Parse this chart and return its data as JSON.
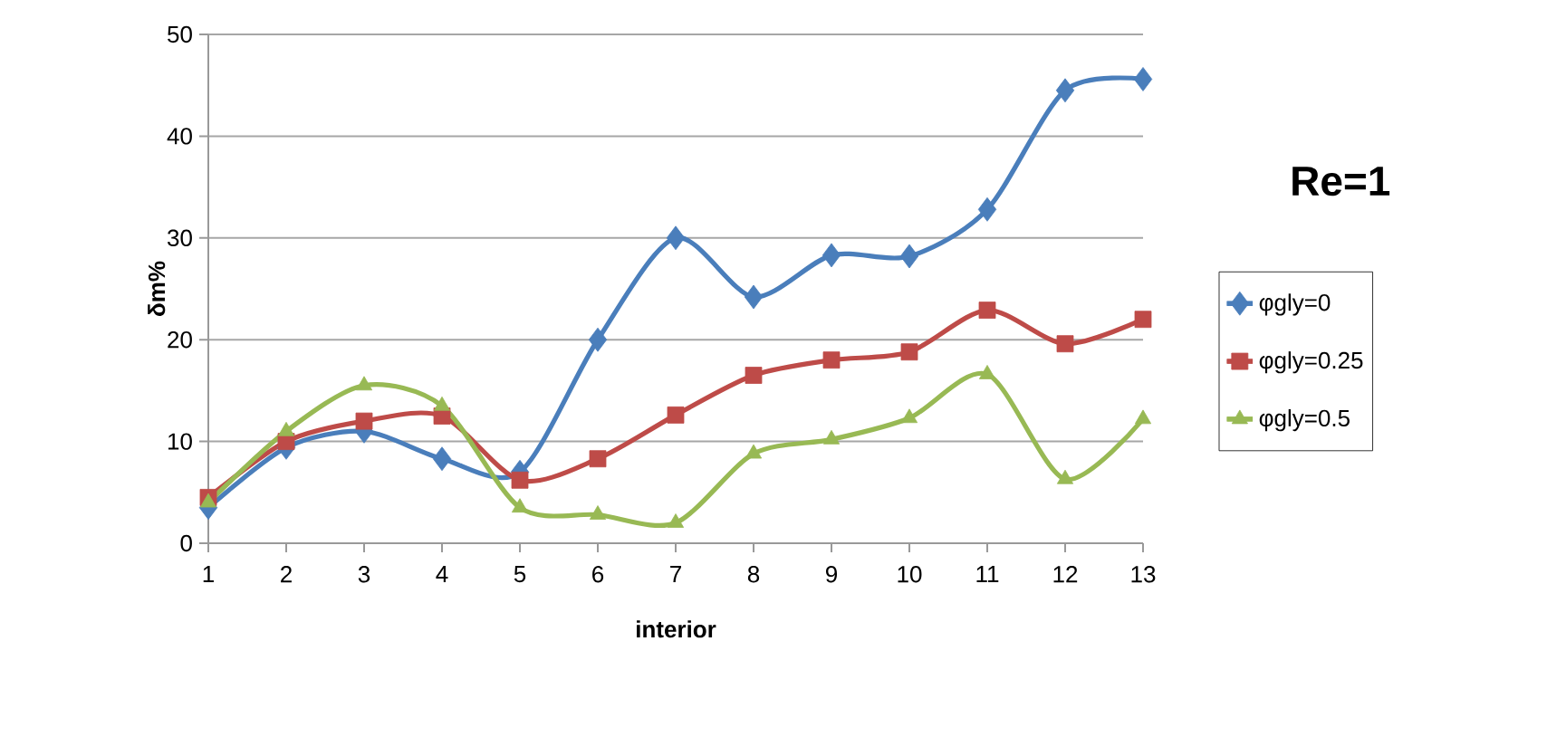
{
  "chart_data": {
    "type": "line",
    "title": "Re=1",
    "xlabel": "interior",
    "ylabel": "δm%",
    "categories": [
      "1",
      "2",
      "3",
      "4",
      "5",
      "6",
      "7",
      "8",
      "9",
      "10",
      "11",
      "12",
      "13"
    ],
    "ylim": [
      0,
      50
    ],
    "yticks": [
      0,
      10,
      20,
      30,
      40,
      50
    ],
    "grid": "y",
    "legend": "right",
    "series": [
      {
        "name": "φgly=0",
        "color": "#4a7ebb",
        "marker": "diamond",
        "values": [
          3.5,
          9.4,
          11,
          8.3,
          7,
          20,
          30,
          24.2,
          28.3,
          28.2,
          32.8,
          44.5,
          45.6
        ]
      },
      {
        "name": "φgly=0.25",
        "color": "#be4b48",
        "marker": "square",
        "values": [
          4.5,
          10,
          12,
          12.5,
          6.2,
          8.3,
          12.6,
          16.5,
          18,
          18.8,
          22.9,
          19.6,
          22
        ]
      },
      {
        "name": "φgly=0.5",
        "color": "#98b954",
        "marker": "triangle",
        "values": [
          4,
          11,
          15.5,
          13.5,
          3.5,
          2.8,
          2,
          8.8,
          10.2,
          12.3,
          16.6,
          6.3,
          12.2
        ]
      }
    ]
  }
}
